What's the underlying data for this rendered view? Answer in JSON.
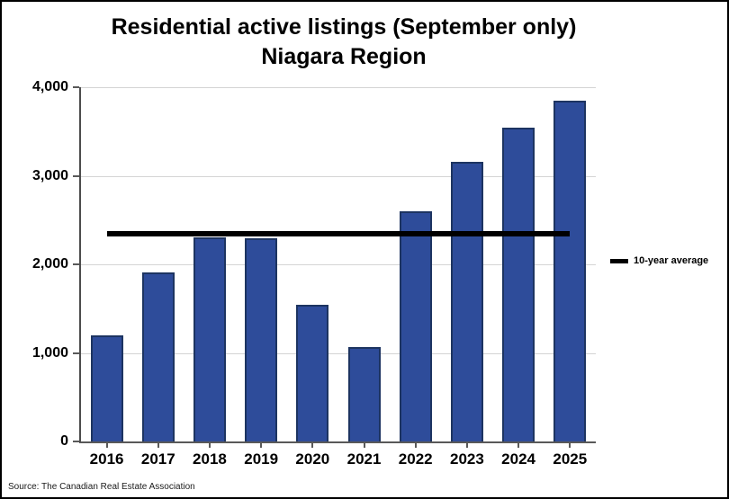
{
  "title": {
    "line1": "Residential active listings (September only)",
    "line2": "Niagara Region"
  },
  "legend": {
    "label": "10-year average"
  },
  "source": {
    "text": "Source: The Canadian Real Estate Association"
  },
  "chart_data": {
    "type": "bar",
    "title": "Residential active listings (September only) Niagara Region",
    "categories": [
      "2016",
      "2017",
      "2018",
      "2019",
      "2020",
      "2021",
      "2022",
      "2023",
      "2024",
      "2025"
    ],
    "values": [
      1200,
      1910,
      2300,
      2290,
      1545,
      1070,
      2600,
      3155,
      3540,
      3845
    ],
    "average_line": {
      "label": "10-year average",
      "value": 2350
    },
    "xlabel": "",
    "ylabel": "",
    "ylim": [
      0,
      4000
    ],
    "yticks": [
      0,
      1000,
      2000,
      3000,
      4000
    ],
    "ytick_labels": [
      "0",
      "1,000",
      "2,000",
      "3,000",
      "4,000"
    ],
    "grid": true,
    "legend_position": "right",
    "colors": {
      "bar_fill": "#2e4c9a",
      "bar_border": "#1d3461",
      "average_line": "#000000",
      "gridline": "#d4d4d4",
      "axis": "#595959"
    }
  }
}
